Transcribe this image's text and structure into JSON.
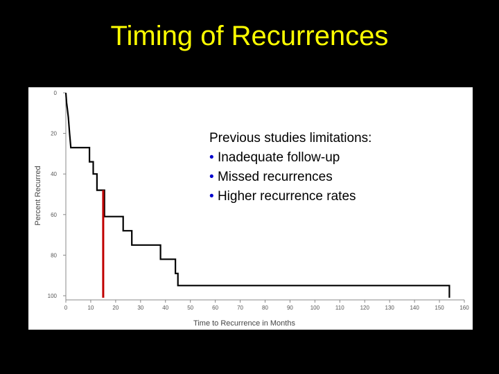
{
  "slide": {
    "title": "Timing of Recurrences",
    "title_color": "#ffff00",
    "background": "#000000"
  },
  "callout": {
    "heading": "Previous studies limitations:",
    "bullet_glyph": "•",
    "bullet_color": "#0000cc",
    "items": [
      "Inadequate follow-up",
      "Missed recurrences",
      "Higher recurrence rates"
    ]
  },
  "chart_data": {
    "type": "line",
    "step": true,
    "xlabel": "Time to Recurrence in Months",
    "ylabel": "Percent Recurred",
    "xlim": [
      0,
      160
    ],
    "ylim": [
      0,
      100
    ],
    "y_inverted": true,
    "grid": false,
    "x_ticks": [
      0,
      10,
      20,
      30,
      40,
      50,
      60,
      70,
      80,
      90,
      100,
      110,
      120,
      130,
      140,
      150,
      160
    ],
    "x_tick_labels": [
      "0",
      "10",
      "20",
      "30",
      "40",
      "50",
      "60",
      "70",
      "80",
      "90",
      "100",
      "110",
      "120",
      "130",
      "140",
      "150",
      "160"
    ],
    "y_ticks": [
      0,
      20,
      40,
      60,
      80,
      100
    ],
    "y_tick_labels": [
      "0",
      "20",
      "40",
      "60",
      "80",
      "100"
    ],
    "series": [
      {
        "color": "#000000",
        "points": [
          [
            0,
            0
          ],
          [
            0.3,
            5
          ],
          [
            0.6,
            8
          ],
          [
            1.0,
            12
          ],
          [
            1.5,
            20
          ],
          [
            2.0,
            27
          ],
          [
            9.5,
            27
          ],
          [
            9.5,
            34
          ],
          [
            11.0,
            34
          ],
          [
            11.0,
            40
          ],
          [
            12.5,
            40
          ],
          [
            12.5,
            48
          ],
          [
            15.5,
            48
          ],
          [
            15.5,
            61
          ],
          [
            23.0,
            61
          ],
          [
            23.0,
            68
          ],
          [
            26.5,
            68
          ],
          [
            26.5,
            75
          ],
          [
            38.0,
            75
          ],
          [
            38.0,
            82
          ],
          [
            44.0,
            82
          ],
          [
            44.0,
            89
          ],
          [
            45.0,
            89
          ],
          [
            45.0,
            95
          ],
          [
            154.0,
            95
          ],
          [
            154.0,
            101
          ]
        ]
      }
    ],
    "marker_line": {
      "color": "#c00000",
      "x": 15,
      "y_from": 48,
      "y_to": 101
    }
  }
}
